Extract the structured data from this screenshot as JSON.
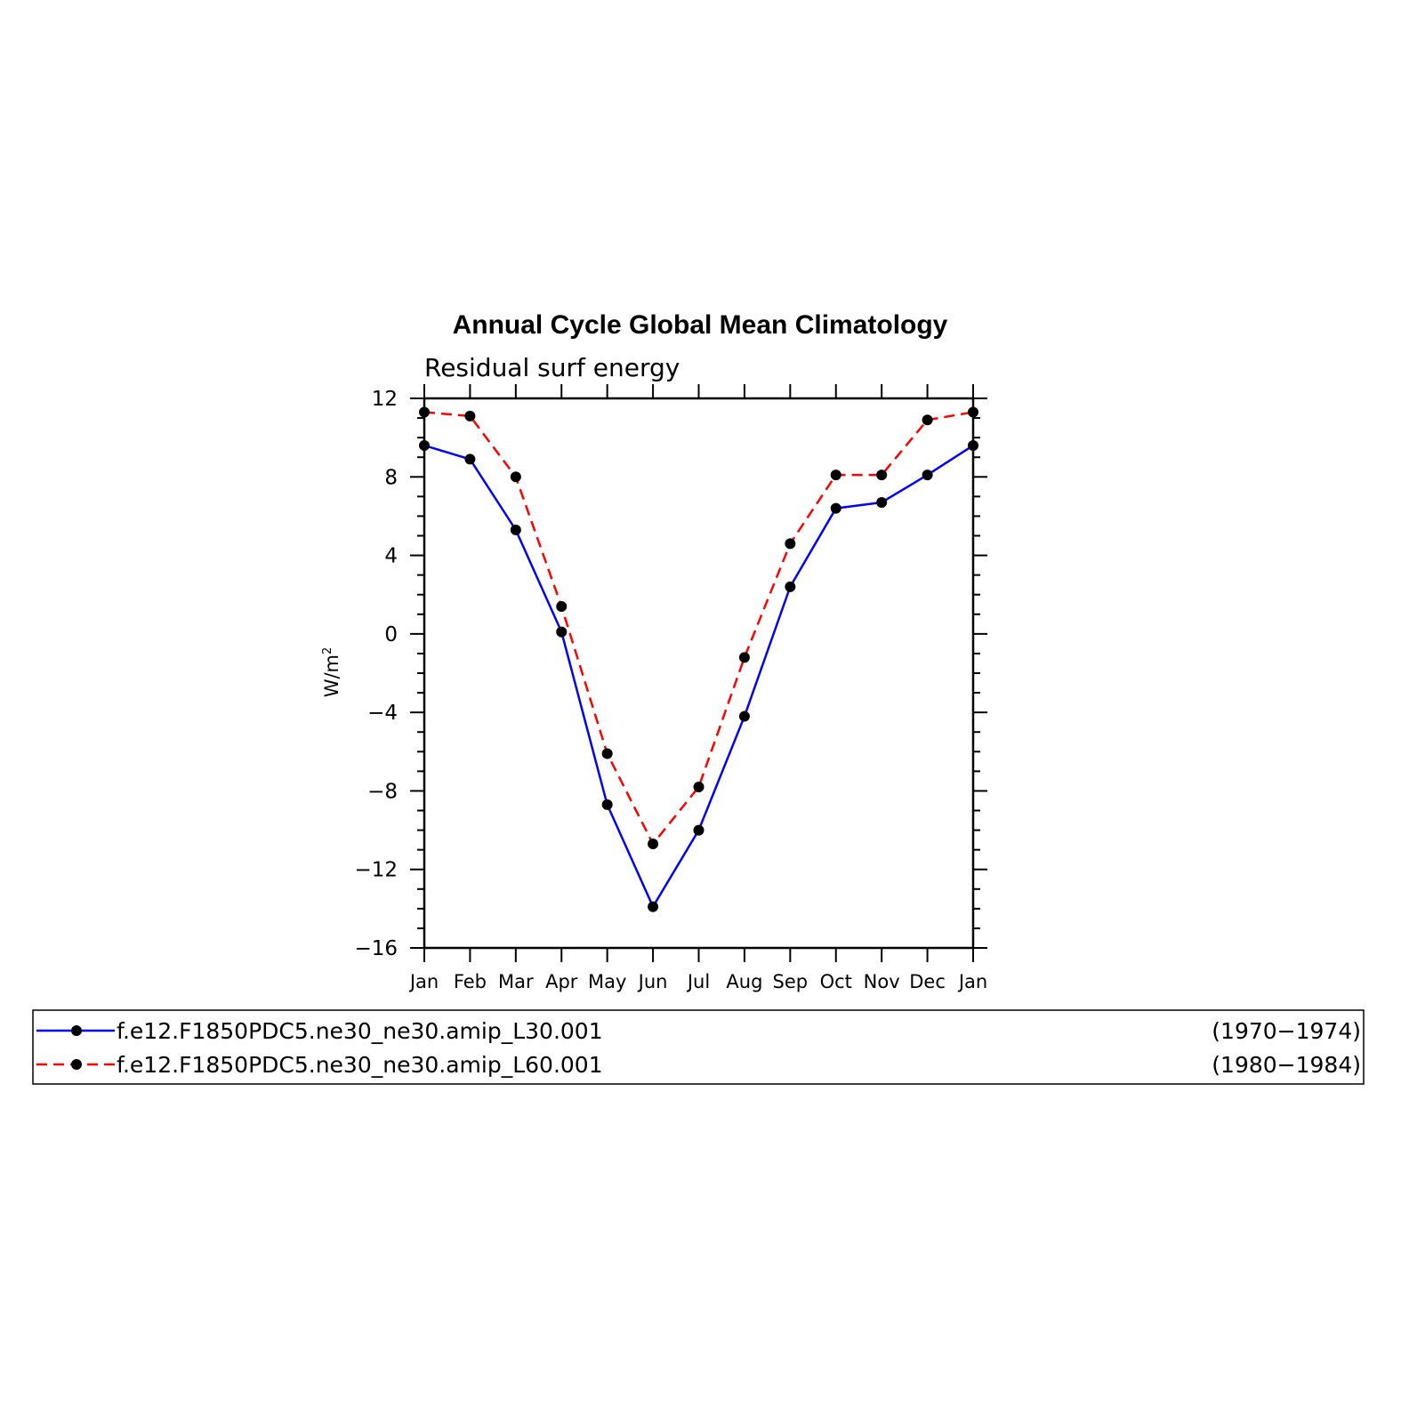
{
  "chart_data": {
    "type": "line",
    "title": "Annual Cycle Global Mean Climatology",
    "subtitle": "Residual surf energy",
    "xlabel": "",
    "ylabel": "W/m",
    "ylabel_superscript": "2",
    "categories": [
      "Jan",
      "Feb",
      "Mar",
      "Apr",
      "May",
      "Jun",
      "Jul",
      "Aug",
      "Sep",
      "Oct",
      "Nov",
      "Dec",
      "Jan"
    ],
    "ylim": [
      -16,
      12
    ],
    "yticks": [
      12,
      8,
      4,
      0,
      -4,
      -8,
      -12,
      -16
    ],
    "ytick_labels": [
      "12",
      "8",
      "4",
      "0",
      "−4",
      "−8",
      "−12",
      "−16"
    ],
    "grid": false,
    "legend_position": "bottom",
    "series": [
      {
        "name": "f.e12.F1850PDC5.ne30_ne30.amip_L30.001",
        "period": "(1970−1974)",
        "color": "#0000ff",
        "line_style": "solid",
        "marker": "dot",
        "values": [
          9.6,
          8.9,
          5.3,
          0.1,
          -8.7,
          -13.9,
          -10.0,
          -4.2,
          2.4,
          6.4,
          6.7,
          8.1,
          9.6
        ]
      },
      {
        "name": "f.e12.F1850PDC5.ne30_ne30.amip_L60.001",
        "period": "(1980−1984)",
        "color": "#ff0000",
        "line_style": "dashed",
        "marker": "dot",
        "values": [
          11.3,
          11.1,
          8.0,
          1.4,
          -6.1,
          -10.7,
          -7.8,
          -1.2,
          4.6,
          8.1,
          8.1,
          10.9,
          11.3
        ]
      }
    ]
  }
}
